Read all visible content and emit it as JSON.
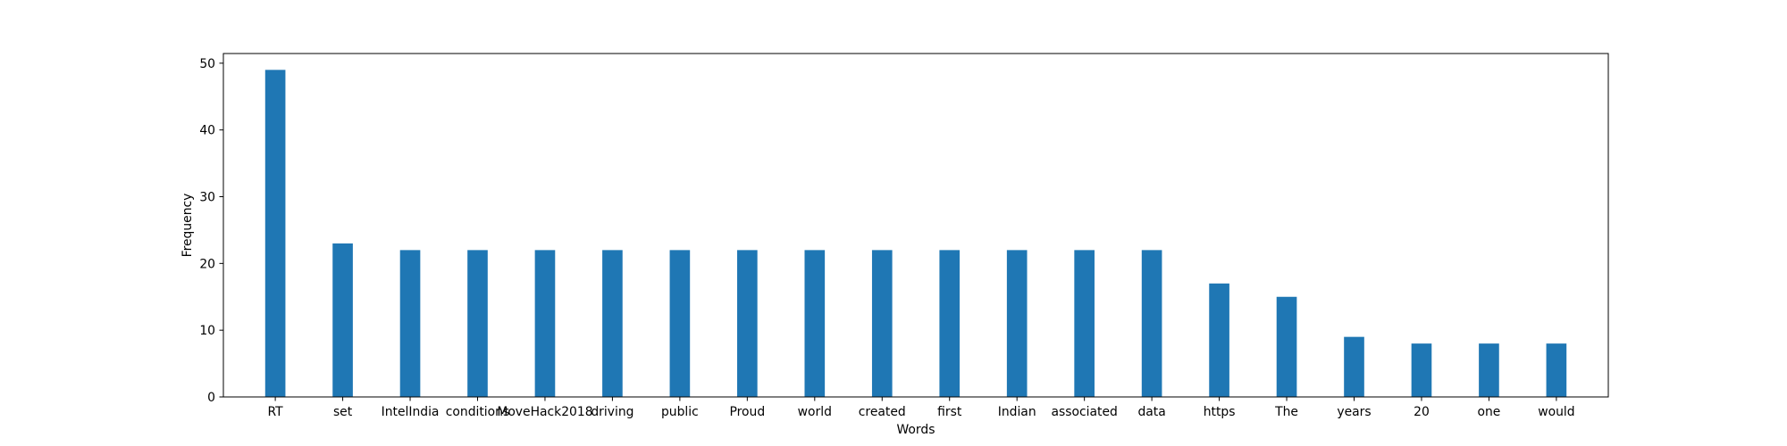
{
  "chart_data": {
    "type": "bar",
    "categories": [
      "RT",
      "set",
      "IntelIndia",
      "conditions",
      "MoveHack2018",
      "driving",
      "public",
      "Proud",
      "world",
      "created",
      "first",
      "Indian",
      "associated",
      "data",
      "https",
      "The",
      "years",
      "20",
      "one",
      "would"
    ],
    "values": [
      49,
      23,
      22,
      22,
      22,
      22,
      22,
      22,
      22,
      22,
      22,
      22,
      22,
      22,
      17,
      15,
      9,
      8,
      8,
      8
    ],
    "title": "",
    "xlabel": "Words",
    "ylabel": "Frequency",
    "ylim": [
      0,
      51.45
    ],
    "yticks": [
      0,
      10,
      20,
      30,
      40,
      50
    ],
    "grid": false,
    "bar_color": "#1f77b4",
    "axis_color": "#000000"
  }
}
